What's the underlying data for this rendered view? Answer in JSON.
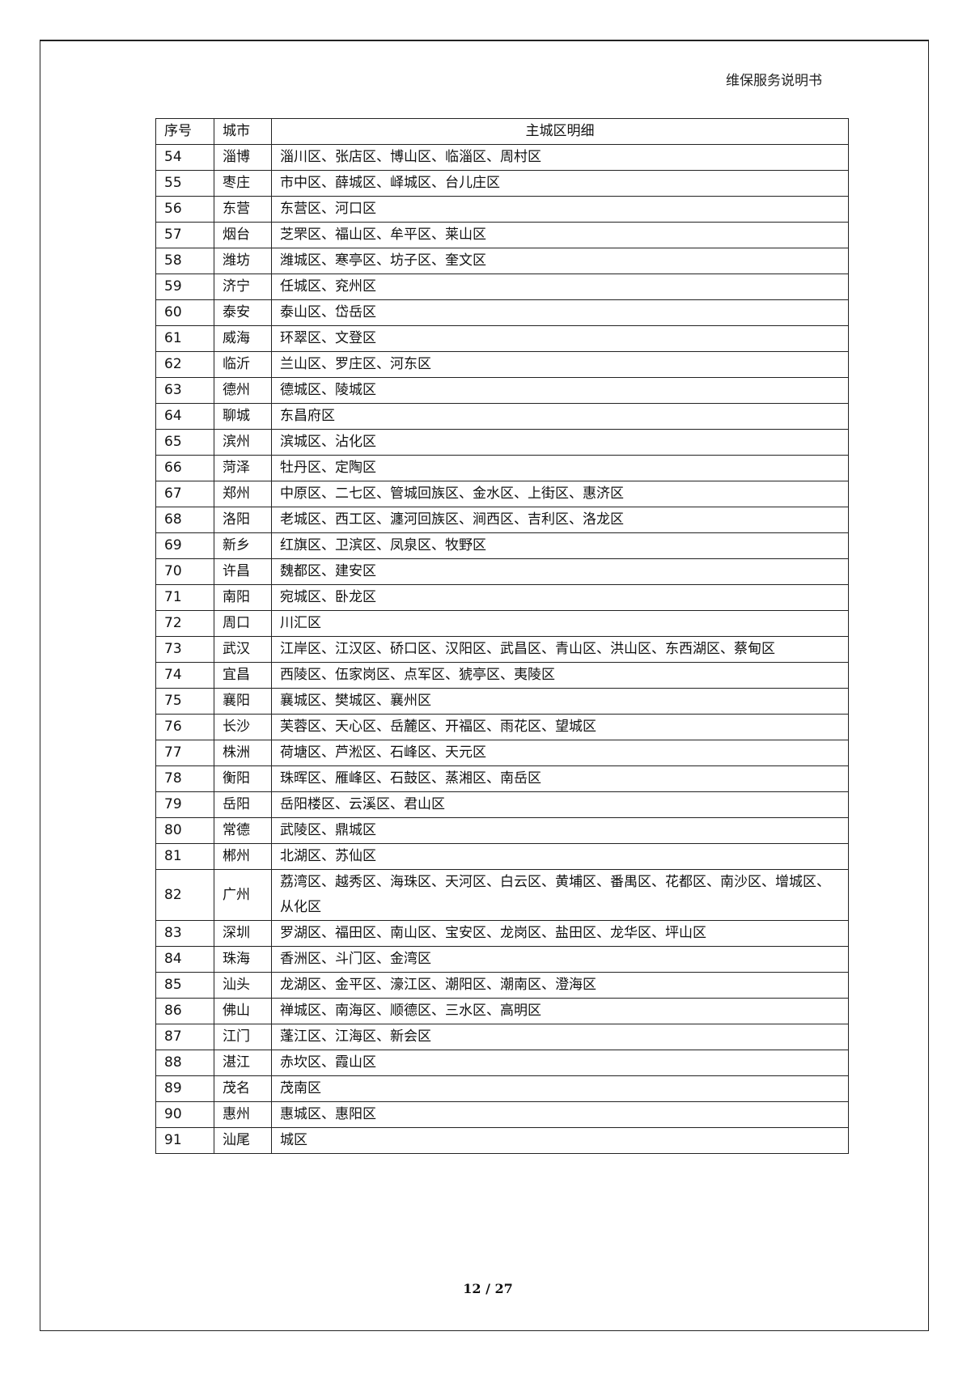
{
  "header": {
    "title": "维保服务说明书"
  },
  "table": {
    "columns": [
      "序号",
      "城市",
      "主城区明细"
    ],
    "rows": [
      [
        "54",
        "淄博",
        "淄川区、张店区、博山区、临淄区、周村区"
      ],
      [
        "55",
        "枣庄",
        "市中区、薛城区、峄城区、台儿庄区"
      ],
      [
        "56",
        "东营",
        "东营区、河口区"
      ],
      [
        "57",
        "烟台",
        "芝罘区、福山区、牟平区、莱山区"
      ],
      [
        "58",
        "潍坊",
        "潍城区、寒亭区、坊子区、奎文区"
      ],
      [
        "59",
        "济宁",
        "任城区、兖州区"
      ],
      [
        "60",
        "泰安",
        "泰山区、岱岳区"
      ],
      [
        "61",
        "威海",
        "环翠区、文登区"
      ],
      [
        "62",
        "临沂",
        "兰山区、罗庄区、河东区"
      ],
      [
        "63",
        "德州",
        "德城区、陵城区"
      ],
      [
        "64",
        "聊城",
        "东昌府区"
      ],
      [
        "65",
        "滨州",
        "滨城区、沾化区"
      ],
      [
        "66",
        "菏泽",
        "牡丹区、定陶区"
      ],
      [
        "67",
        "郑州",
        "中原区、二七区、管城回族区、金水区、上街区、惠济区"
      ],
      [
        "68",
        "洛阳",
        "老城区、西工区、瀍河回族区、涧西区、吉利区、洛龙区"
      ],
      [
        "69",
        "新乡",
        "红旗区、卫滨区、凤泉区、牧野区"
      ],
      [
        "70",
        "许昌",
        "魏都区、建安区"
      ],
      [
        "71",
        "南阳",
        "宛城区、卧龙区"
      ],
      [
        "72",
        "周口",
        "川汇区"
      ],
      [
        "73",
        "武汉",
        "江岸区、江汉区、硚口区、汉阳区、武昌区、青山区、洪山区、东西湖区、蔡甸区"
      ],
      [
        "74",
        "宜昌",
        "西陵区、伍家岗区、点军区、猇亭区、夷陵区"
      ],
      [
        "75",
        "襄阳",
        "襄城区、樊城区、襄州区"
      ],
      [
        "76",
        "长沙",
        "芙蓉区、天心区、岳麓区、开福区、雨花区、望城区"
      ],
      [
        "77",
        "株洲",
        "荷塘区、芦淞区、石峰区、天元区"
      ],
      [
        "78",
        "衡阳",
        "珠晖区、雁峰区、石鼓区、蒸湘区、南岳区"
      ],
      [
        "79",
        "岳阳",
        "岳阳楼区、云溪区、君山区"
      ],
      [
        "80",
        "常德",
        "武陵区、鼎城区"
      ],
      [
        "81",
        "郴州",
        "北湖区、苏仙区"
      ],
      [
        "82",
        "广州",
        "荔湾区、越秀区、海珠区、天河区、白云区、黄埔区、番禺区、花都区、南沙区、增城区、从化区"
      ],
      [
        "83",
        "深圳",
        "罗湖区、福田区、南山区、宝安区、龙岗区、盐田区、龙华区、坪山区"
      ],
      [
        "84",
        "珠海",
        "香洲区、斗门区、金湾区"
      ],
      [
        "85",
        "汕头",
        "龙湖区、金平区、濠江区、潮阳区、潮南区、澄海区"
      ],
      [
        "86",
        "佛山",
        "禅城区、南海区、顺德区、三水区、高明区"
      ],
      [
        "87",
        "江门",
        "蓬江区、江海区、新会区"
      ],
      [
        "88",
        "湛江",
        "赤坎区、霞山区"
      ],
      [
        "89",
        "茂名",
        "茂南区"
      ],
      [
        "90",
        "惠州",
        "惠城区、惠阳区"
      ],
      [
        "91",
        "汕尾",
        "城区"
      ]
    ]
  },
  "footer": {
    "page": "12 / 27"
  }
}
